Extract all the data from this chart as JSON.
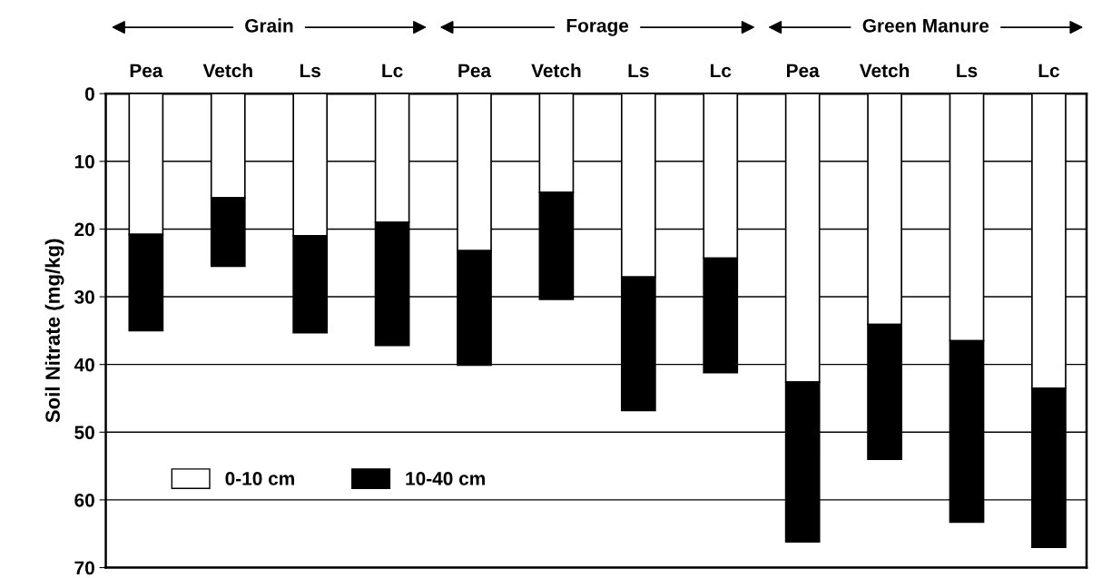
{
  "chart_data": {
    "type": "bar",
    "stacked": true,
    "ylabel": "Soil Nitrate (mg/kg)",
    "categories": [
      "Pea",
      "Vetch",
      "Ls",
      "Lc",
      "Pea",
      "Vetch",
      "Ls",
      "Lc",
      "Pea",
      "Vetch",
      "Ls",
      "Lc"
    ],
    "series": [
      {
        "name": "0-10 cm",
        "color": "#ffffff",
        "values": [
          20.8,
          15.4,
          21.0,
          19.0,
          23.2,
          14.6,
          27.1,
          24.3,
          42.6,
          34.1,
          36.5,
          43.5
        ]
      },
      {
        "name": "10-40 cm",
        "color": "#000000",
        "values": [
          14.2,
          10.1,
          14.3,
          18.2,
          16.9,
          15.8,
          19.7,
          16.9,
          23.6,
          19.9,
          26.8,
          23.5
        ]
      }
    ],
    "ylim": [
      70,
      0
    ],
    "yticks": [
      0,
      10,
      20,
      30,
      40,
      50,
      60,
      70
    ],
    "grid": "y",
    "legend": "bottom left",
    "annotations": [
      "Grain",
      "Forage",
      "Green Manure"
    ]
  }
}
